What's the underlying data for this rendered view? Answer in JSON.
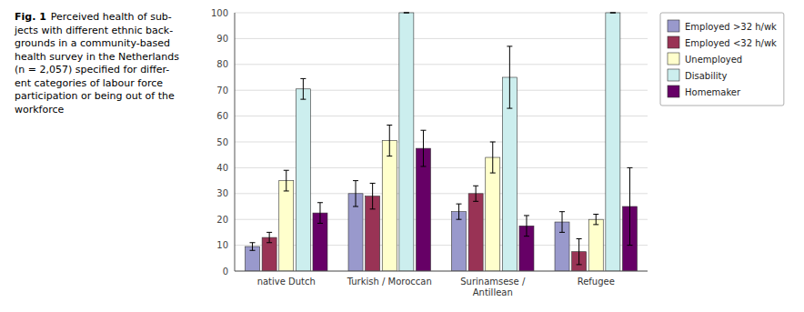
{
  "chart_data": {
    "type": "bar",
    "annotations": [
      "Fig. 1",
      "Perceived health of sub-\njects with different ethnic back-\ngrounds in a community-based\nhealth survey in the Netherlands\n(n = 2,057) specified for differ-\nent categories of labour force\nparticipation or being out of the\nworkforce"
    ],
    "categories": [
      "native Dutch",
      "Turkish / Moroccan",
      "Surinamsese / Antillean",
      "Refugee"
    ],
    "series": [
      {
        "name": "Employed >32 h/wk",
        "color": "#9999CC",
        "values": [
          9.5,
          30,
          23,
          19
        ],
        "errors": [
          1.5,
          5,
          3,
          4
        ]
      },
      {
        "name": "Employed <32 h/wk",
        "color": "#993355",
        "values": [
          13,
          29,
          30,
          7.5
        ],
        "errors": [
          2,
          5,
          3,
          5
        ]
      },
      {
        "name": "Unemployed",
        "color": "#FFFFCC",
        "values": [
          35,
          50.5,
          44,
          20
        ],
        "errors": [
          4,
          6,
          6,
          2
        ]
      },
      {
        "name": "Disability",
        "color": "#CCEEEE",
        "values": [
          70.5,
          100,
          75,
          100
        ],
        "errors": [
          4,
          0,
          12,
          0
        ]
      },
      {
        "name": "Homemaker",
        "color": "#660066",
        "values": [
          22.5,
          47.5,
          17.5,
          25
        ],
        "errors": [
          4,
          7,
          4,
          15
        ]
      }
    ],
    "ylim": [
      0,
      100
    ],
    "yticks": [
      0,
      10,
      20,
      30,
      40,
      50,
      60,
      70,
      80,
      90,
      100
    ],
    "grid": true,
    "legend": "right"
  }
}
